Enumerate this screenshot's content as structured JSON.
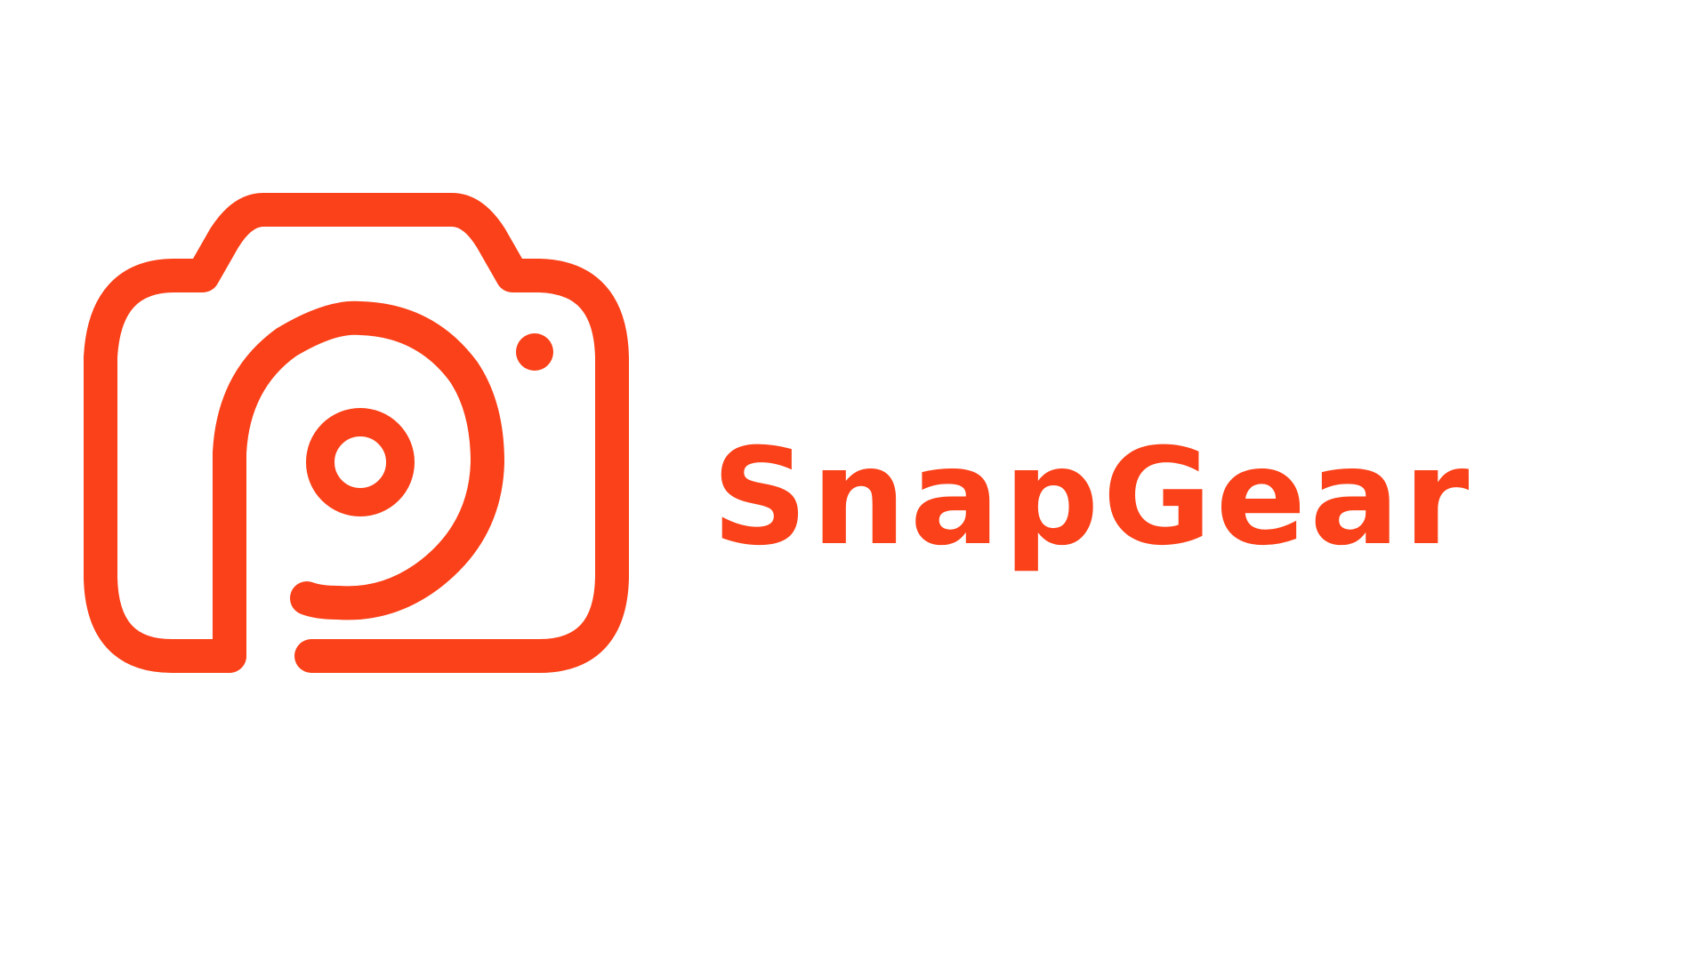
{
  "brand": {
    "name": "SnapGear",
    "color": "#fa4119",
    "background": "#ffffff"
  },
  "logo": {
    "icon": "camera-spiral-icon"
  }
}
